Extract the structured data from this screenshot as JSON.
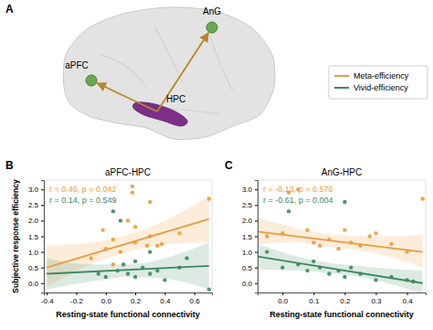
{
  "diagram": {
    "panel": "A",
    "nodes": [
      {
        "label": "aPFC"
      },
      {
        "label": "AnG"
      },
      {
        "label": "HPC"
      }
    ]
  },
  "chart_data": [
    {
      "type": "scatter",
      "panel": "B",
      "title": "aPFC-HPC",
      "x_label": "Resting-state functional connectivity",
      "y_label": "Subjective response efficiency",
      "xlim": [
        -0.42,
        0.72
      ],
      "xticks": [
        -0.4,
        -0.2,
        {
          "value": 0,
          "label": "0.0"
        },
        0.2,
        0.4,
        0.6
      ],
      "ylim": [
        -0.3,
        3.3
      ],
      "yticks": [
        {
          "value": 0,
          "label": "0.0"
        },
        0.5,
        {
          "value": 1,
          "label": "1.0"
        },
        1.5,
        {
          "value": 2,
          "label": "2.0"
        },
        2.5,
        {
          "value": 3,
          "label": "3.0"
        }
      ],
      "legend": "top-right",
      "annotations": [
        "r = 0.46, p = 0.042",
        "r = 0.14, p = 0.549"
      ],
      "series": [
        {
          "name": "Meta-efficiency",
          "color": "#ee9a3a",
          "x": [
            0.0,
            0.05,
            0.1,
            0.15,
            0.18,
            0.18,
            0.2,
            0.2,
            0.28,
            0.3,
            0.35,
            0.38,
            0.05,
            -0.02,
            0.5,
            0.7,
            -0.1,
            0.3
          ],
          "values": [
            1.1,
            1.4,
            1.0,
            2.0,
            2.9,
            3.1,
            1.3,
            1.8,
            1.2,
            1.5,
            1.2,
            1.25,
            0.6,
            1.7,
            1.6,
            2.7,
            0.8,
            2.6
          ],
          "fit_x": [
            -0.4,
            0.7
          ],
          "fit_y": [
            0.5,
            2.05
          ],
          "band_x": [
            -0.4,
            -0.1,
            0.15,
            0.4,
            0.7
          ],
          "band_lower": [
            -0.1,
            0.6,
            1.0,
            1.25,
            1.3
          ],
          "band_upper": [
            1.2,
            1.3,
            1.55,
            2.0,
            2.8
          ]
        },
        {
          "name": "Vivid-efficiency",
          "color": "#3d8a5c",
          "x": [
            0.05,
            0.1,
            0.08,
            0.12,
            0.15,
            0.2,
            0.25,
            0.3,
            0.35,
            0.4,
            0.0,
            0.5,
            0.7,
            -0.05,
            0.2,
            0.3,
            0.55
          ],
          "values": [
            2.3,
            2.0,
            0.4,
            0.6,
            0.3,
            0.2,
            0.5,
            0.3,
            0.4,
            0.1,
            0.2,
            0.5,
            -0.2,
            0.3,
            0.7,
            1.0,
            0.8
          ],
          "fit_x": [
            -0.4,
            0.7
          ],
          "fit_y": [
            0.3,
            0.55
          ],
          "band_x": [
            -0.4,
            -0.1,
            0.15,
            0.4,
            0.7
          ],
          "band_lower": [
            -0.2,
            0.05,
            0.2,
            0.15,
            -0.2
          ],
          "band_upper": [
            0.8,
            0.6,
            0.6,
            0.8,
            1.3
          ]
        }
      ]
    },
    {
      "type": "scatter",
      "panel": "C",
      "title": "AnG-HPC",
      "x_label": "Resting-state functional connectivity",
      "xlim": [
        -0.08,
        0.46
      ],
      "xticks": [
        {
          "value": 0,
          "label": "0.0"
        },
        0.1,
        0.2,
        0.3,
        0.4
      ],
      "ylim": [
        -0.3,
        3.3
      ],
      "yticks": [
        {
          "value": 0,
          "label": "0.0"
        },
        0.5,
        {
          "value": 1,
          "label": "1.0"
        },
        1.5,
        {
          "value": 2,
          "label": "2.0"
        },
        2.5,
        {
          "value": 3,
          "label": "3.0"
        }
      ],
      "annotations": [
        "r = -0.13, p = 0.576",
        "r = -0.61, p = 0.004"
      ],
      "series": [
        {
          "color": "#ee9a3a",
          "x": [
            0.0,
            0.02,
            0.05,
            0.08,
            0.1,
            0.12,
            0.15,
            0.18,
            0.2,
            0.22,
            0.25,
            0.28,
            0.3,
            0.35,
            0.4,
            0.45,
            -0.05
          ],
          "values": [
            1.6,
            2.9,
            3.0,
            1.7,
            1.3,
            1.2,
            1.4,
            1.1,
            1.7,
            1.3,
            1.2,
            1.5,
            1.6,
            1.25,
            1.0,
            2.7,
            1.5
          ],
          "fit_x": [
            -0.08,
            0.45
          ],
          "fit_y": [
            1.65,
            1.0
          ],
          "band_x": [
            -0.08,
            0.05,
            0.12,
            0.3,
            0.45
          ],
          "band_lower": [
            1.25,
            1.3,
            1.2,
            0.95,
            0.5
          ],
          "band_upper": [
            2.1,
            1.75,
            1.6,
            1.5,
            1.55
          ]
        },
        {
          "color": "#3d8a5c",
          "x": [
            -0.05,
            0.0,
            0.02,
            0.05,
            0.08,
            0.1,
            0.12,
            0.15,
            0.18,
            0.2,
            0.2,
            0.25,
            0.3,
            0.35,
            0.4,
            0.42,
            0.22
          ],
          "values": [
            1.0,
            0.5,
            2.3,
            0.6,
            0.4,
            0.7,
            0.5,
            0.3,
            0.4,
            2.6,
            0.2,
            0.3,
            0.1,
            0.2,
            0.1,
            0.05,
            0.5
          ],
          "fit_x": [
            -0.08,
            0.45
          ],
          "fit_y": [
            0.85,
            0.0
          ],
          "band_x": [
            -0.08,
            0.05,
            0.12,
            0.3,
            0.45
          ],
          "band_lower": [
            0.45,
            0.4,
            0.35,
            0.1,
            -0.35
          ],
          "band_upper": [
            1.25,
            0.85,
            0.7,
            0.5,
            0.4
          ]
        }
      ]
    }
  ]
}
